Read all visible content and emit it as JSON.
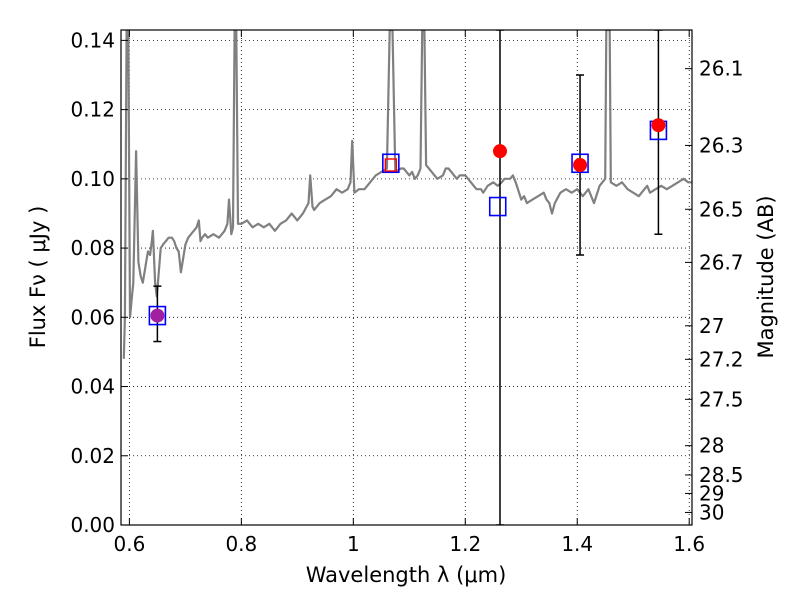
{
  "chart_data": {
    "type": "scatter",
    "title": "",
    "xlabel": "Wavelength  λ (μm)",
    "ylabel": "Flux  Fν ( μJy )",
    "y2label": "Magnitude (AB)",
    "xlim": [
      0.585,
      1.605
    ],
    "ylim": [
      0.0,
      0.143
    ],
    "grid": true,
    "x_ticks": [
      0.6,
      0.8,
      1.0,
      1.2,
      1.4,
      1.6
    ],
    "x_tick_labels": [
      "0.6",
      "0.8",
      "1",
      "1.2",
      "1.4",
      "1.6"
    ],
    "y_ticks": [
      0.0,
      0.02,
      0.04,
      0.06,
      0.08,
      0.1,
      0.12,
      0.14
    ],
    "y_tick_labels": [
      "0.00",
      "0.02",
      "0.04",
      "0.06",
      "0.08",
      "0.10",
      "0.12",
      "0.14"
    ],
    "mag_ticks": [
      26.1,
      26.3,
      26.5,
      26.7,
      27,
      27.2,
      27.5,
      28,
      28.5,
      29,
      30
    ],
    "mag_tick_labels": [
      "26.1",
      "26.3",
      "26.5",
      "26.7",
      "27",
      "27.2",
      "27.5",
      "28",
      "28.5",
      "29",
      "30"
    ],
    "series": [
      {
        "kind": "line",
        "color": "#808080",
        "points": [
          [
            0.59,
            0.048
          ],
          [
            0.592,
            0.06
          ],
          [
            0.595,
            0.143
          ],
          [
            0.598,
            0.143
          ],
          [
            0.601,
            0.06
          ],
          [
            0.604,
            0.065
          ],
          [
            0.607,
            0.07
          ],
          [
            0.612,
            0.108
          ],
          [
            0.616,
            0.076
          ],
          [
            0.62,
            0.072
          ],
          [
            0.624,
            0.07
          ],
          [
            0.628,
            0.074
          ],
          [
            0.633,
            0.079
          ],
          [
            0.637,
            0.078
          ],
          [
            0.64,
            0.082
          ],
          [
            0.642,
            0.085
          ],
          [
            0.646,
            0.07
          ],
          [
            0.649,
            0.066
          ],
          [
            0.652,
            0.072
          ],
          [
            0.656,
            0.08
          ],
          [
            0.66,
            0.081
          ],
          [
            0.665,
            0.082
          ],
          [
            0.67,
            0.083
          ],
          [
            0.676,
            0.083
          ],
          [
            0.68,
            0.082
          ],
          [
            0.684,
            0.08
          ],
          [
            0.688,
            0.079
          ],
          [
            0.692,
            0.073
          ],
          [
            0.695,
            0.076
          ],
          [
            0.7,
            0.081
          ],
          [
            0.705,
            0.083
          ],
          [
            0.71,
            0.084
          ],
          [
            0.715,
            0.085
          ],
          [
            0.72,
            0.086
          ],
          [
            0.724,
            0.088
          ],
          [
            0.727,
            0.082
          ],
          [
            0.73,
            0.083
          ],
          [
            0.735,
            0.084
          ],
          [
            0.74,
            0.083
          ],
          [
            0.75,
            0.084
          ],
          [
            0.76,
            0.083
          ],
          [
            0.77,
            0.085
          ],
          [
            0.775,
            0.087
          ],
          [
            0.778,
            0.094
          ],
          [
            0.782,
            0.084
          ],
          [
            0.785,
            0.086
          ],
          [
            0.788,
            0.143
          ],
          [
            0.791,
            0.143
          ],
          [
            0.794,
            0.087
          ],
          [
            0.8,
            0.087
          ],
          [
            0.81,
            0.088
          ],
          [
            0.82,
            0.086
          ],
          [
            0.83,
            0.087
          ],
          [
            0.84,
            0.086
          ],
          [
            0.85,
            0.087
          ],
          [
            0.86,
            0.085
          ],
          [
            0.87,
            0.087
          ],
          [
            0.88,
            0.088
          ],
          [
            0.89,
            0.09
          ],
          [
            0.9,
            0.088
          ],
          [
            0.91,
            0.09
          ],
          [
            0.92,
            0.093
          ],
          [
            0.923,
            0.101
          ],
          [
            0.927,
            0.092
          ],
          [
            0.93,
            0.091
          ],
          [
            0.94,
            0.093
          ],
          [
            0.95,
            0.094
          ],
          [
            0.96,
            0.095
          ],
          [
            0.97,
            0.097
          ],
          [
            0.98,
            0.096
          ],
          [
            0.99,
            0.097
          ],
          [
            0.995,
            0.099
          ],
          [
            0.998,
            0.111
          ],
          [
            1.002,
            0.096
          ],
          [
            1.01,
            0.097
          ],
          [
            1.02,
            0.097
          ],
          [
            1.03,
            0.099
          ],
          [
            1.04,
            0.101
          ],
          [
            1.05,
            0.102
          ],
          [
            1.06,
            0.103
          ],
          [
            1.065,
            0.143
          ],
          [
            1.07,
            0.143
          ],
          [
            1.075,
            0.102
          ],
          [
            1.085,
            0.103
          ],
          [
            1.09,
            0.103
          ],
          [
            1.095,
            0.102
          ],
          [
            1.1,
            0.101
          ],
          [
            1.105,
            0.102
          ],
          [
            1.11,
            0.1
          ],
          [
            1.115,
            0.101
          ],
          [
            1.12,
            0.103
          ],
          [
            1.123,
            0.143
          ],
          [
            1.127,
            0.143
          ],
          [
            1.13,
            0.104
          ],
          [
            1.14,
            0.102
          ],
          [
            1.15,
            0.1
          ],
          [
            1.16,
            0.101
          ],
          [
            1.165,
            0.103
          ],
          [
            1.17,
            0.103
          ],
          [
            1.175,
            0.102
          ],
          [
            1.18,
            0.101
          ],
          [
            1.185,
            0.1
          ],
          [
            1.19,
            0.101
          ],
          [
            1.2,
            0.101
          ],
          [
            1.21,
            0.099
          ],
          [
            1.22,
            0.097
          ],
          [
            1.228,
            0.097
          ],
          [
            1.232,
            0.096
          ],
          [
            1.24,
            0.098
          ],
          [
            1.25,
            0.099
          ],
          [
            1.258,
            0.098
          ],
          [
            1.265,
            0.099
          ],
          [
            1.27,
            0.1
          ],
          [
            1.28,
            0.1
          ],
          [
            1.285,
            0.101
          ],
          [
            1.29,
            0.099
          ],
          [
            1.3,
            0.094
          ],
          [
            1.305,
            0.095
          ],
          [
            1.31,
            0.093
          ],
          [
            1.32,
            0.094
          ],
          [
            1.33,
            0.095
          ],
          [
            1.34,
            0.096
          ],
          [
            1.345,
            0.094
          ],
          [
            1.35,
            0.093
          ],
          [
            1.355,
            0.09
          ],
          [
            1.36,
            0.093
          ],
          [
            1.37,
            0.096
          ],
          [
            1.38,
            0.097
          ],
          [
            1.39,
            0.096
          ],
          [
            1.4,
            0.097
          ],
          [
            1.41,
            0.095
          ],
          [
            1.42,
            0.097
          ],
          [
            1.43,
            0.093
          ],
          [
            1.44,
            0.098
          ],
          [
            1.45,
            0.1
          ],
          [
            1.452,
            0.143
          ],
          [
            1.458,
            0.143
          ],
          [
            1.46,
            0.099
          ],
          [
            1.47,
            0.098
          ],
          [
            1.48,
            0.099
          ],
          [
            1.49,
            0.097
          ],
          [
            1.5,
            0.096
          ],
          [
            1.51,
            0.095
          ],
          [
            1.52,
            0.097
          ],
          [
            1.525,
            0.098
          ],
          [
            1.53,
            0.096
          ],
          [
            1.54,
            0.097
          ],
          [
            1.55,
            0.098
          ],
          [
            1.56,
            0.097
          ],
          [
            1.57,
            0.098
          ],
          [
            1.58,
            0.099
          ],
          [
            1.59,
            0.1
          ],
          [
            1.598,
            0.099
          ],
          [
            1.604,
            0.099
          ]
        ]
      },
      {
        "kind": "errorbars",
        "color": "#000000",
        "points": [
          {
            "x": 0.65,
            "low": 0.053,
            "high": 0.069
          },
          {
            "x": 1.262,
            "low": 0.0,
            "high": 0.143
          },
          {
            "x": 1.405,
            "low": 0.078,
            "high": 0.13
          },
          {
            "x": 1.545,
            "low": 0.084,
            "high": 0.143
          }
        ]
      },
      {
        "kind": "squares",
        "color": "#0000ff",
        "points": [
          [
            0.65,
            0.0605
          ],
          [
            1.067,
            0.1045
          ],
          [
            1.258,
            0.092
          ],
          [
            1.405,
            0.1045
          ],
          [
            1.545,
            0.114
          ]
        ]
      },
      {
        "kind": "dots",
        "color": "#ff0000",
        "points": [
          [
            1.262,
            0.108
          ],
          [
            1.405,
            0.104
          ],
          [
            1.545,
            0.1155
          ]
        ]
      },
      {
        "kind": "dot",
        "color": "#a020a0",
        "points": [
          [
            0.65,
            0.0605
          ]
        ]
      },
      {
        "kind": "small-square",
        "color": "#ff0000",
        "points": [
          [
            1.067,
            0.104
          ]
        ]
      }
    ]
  }
}
